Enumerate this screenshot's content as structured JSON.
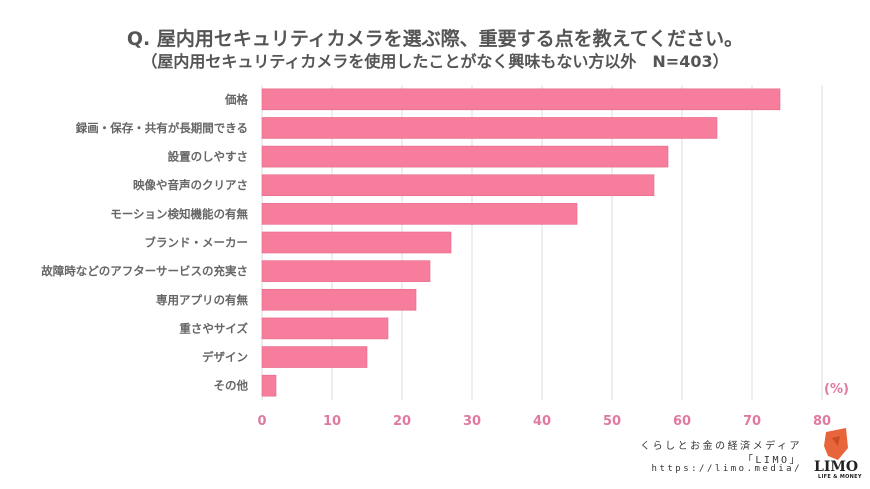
{
  "chart_data": {
    "type": "bar",
    "orientation": "horizontal",
    "title": "Q. 屋内用セキュリティカメラを選ぶ際、重要する点を教えてください。",
    "subtitle": "（屋内用セキュリティカメラを使用したことがなく興味もない方以外　N=403）",
    "categories": [
      "価格",
      "録画・保存・共有が長期間できる",
      "設置のしやすさ",
      "映像や音声のクリアさ",
      "モーション検知機能の有無",
      "ブランド・メーカー",
      "故障時などのアフターサービスの充実さ",
      "専用アプリの有無",
      "重さやサイズ",
      "デザイン",
      "その他"
    ],
    "values": [
      74,
      65,
      58,
      56,
      45,
      27,
      24,
      22,
      18,
      15,
      2
    ],
    "xlabel": "",
    "ylabel": "",
    "unit_label": "(%)",
    "xlim": [
      0,
      80
    ],
    "xticks": [
      "0",
      "10",
      "20",
      "30",
      "40",
      "50",
      "60",
      "70",
      "80"
    ],
    "grid": true,
    "bar_color": "#f77d9c",
    "tick_color": "#e07aa0"
  },
  "credit": {
    "line1": "くらしとお金の経済メディア",
    "line2": "「LIMO」",
    "line3": "https://limo.media/",
    "logo_text": "LIMO",
    "logo_sub": "LIFE & MONEY"
  }
}
